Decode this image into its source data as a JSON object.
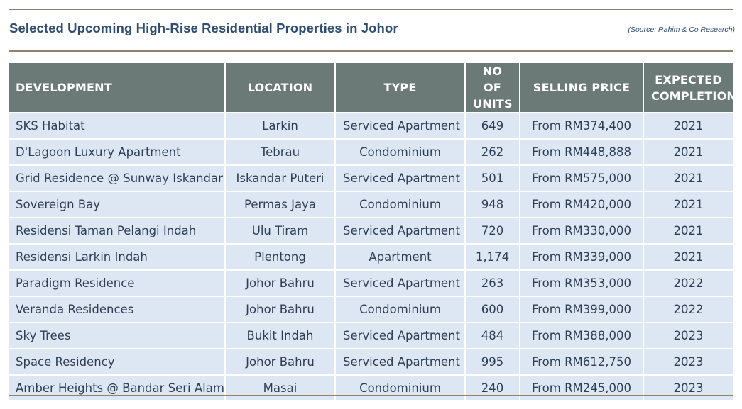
{
  "title": "Selected Upcoming High-Rise Residential Properties in Johor",
  "source": "(Source: Rahim & Co Research)",
  "table": {
    "headers": {
      "development": "DEVELOPMENT",
      "location": "LOCATION",
      "type": "TYPE",
      "units_line1": "NO OF",
      "units_line2": "UNITS",
      "price": "SELLING PRICE",
      "completion_line1": "EXPECTED",
      "completion_line2": "COMPLETION"
    },
    "rows": [
      {
        "development": "SKS Habitat",
        "location": "Larkin",
        "type": "Serviced Apartment",
        "units": "649",
        "price": "From RM374,400",
        "completion": "2021"
      },
      {
        "development": "D'Lagoon Luxury Apartment",
        "location": "Tebrau",
        "type": "Condominium",
        "units": "262",
        "price": "From RM448,888",
        "completion": "2021"
      },
      {
        "development": "Grid Residence @ Sunway Iskandar",
        "location": "Iskandar Puteri",
        "type": "Serviced Apartment",
        "units": "501",
        "price": "From RM575,000",
        "completion": "2021"
      },
      {
        "development": "Sovereign Bay",
        "location": "Permas Jaya",
        "type": "Condominium",
        "units": "948",
        "price": "From RM420,000",
        "completion": "2021"
      },
      {
        "development": "Residensi Taman Pelangi Indah",
        "location": "Ulu Tiram",
        "type": "Serviced Apartment",
        "units": "720",
        "price": "From RM330,000",
        "completion": "2021"
      },
      {
        "development": "Residensi Larkin Indah",
        "location": "Plentong",
        "type": "Apartment",
        "units": "1,174",
        "price": "From RM339,000",
        "completion": "2021"
      },
      {
        "development": "Paradigm Residence",
        "location": "Johor Bahru",
        "type": "Serviced Apartment",
        "units": "263",
        "price": "From RM353,000",
        "completion": "2022"
      },
      {
        "development": "Veranda Residences",
        "location": "Johor Bahru",
        "type": "Condominium",
        "units": "600",
        "price": "From RM399,000",
        "completion": "2022"
      },
      {
        "development": "Sky Trees",
        "location": "Bukit Indah",
        "type": "Serviced Apartment",
        "units": "484",
        "price": "From RM388,000",
        "completion": "2023"
      },
      {
        "development": "Space Residency",
        "location": "Johor Bahru",
        "type": "Serviced Apartment",
        "units": "995",
        "price": "From RM612,750",
        "completion": "2023"
      },
      {
        "development": "Amber Heights @ Bandar Seri Alam",
        "location": "Masai",
        "type": "Condominium",
        "units": "240",
        "price": "From RM245,000",
        "completion": "2023"
      }
    ]
  }
}
